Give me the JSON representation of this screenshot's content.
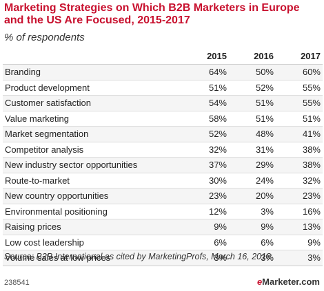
{
  "title": "Marketing Strategies on Which B2B Marketers in Europe and the US Are Focused, 2015-2017",
  "subtitle": "% of respondents",
  "chart_data": {
    "type": "table",
    "columns": [
      "",
      "2015",
      "2016",
      "2017"
    ],
    "rows": [
      {
        "label": "Branding",
        "values": [
          "64%",
          "50%",
          "60%"
        ]
      },
      {
        "label": "Product development",
        "values": [
          "51%",
          "52%",
          "55%"
        ]
      },
      {
        "label": "Customer satisfaction",
        "values": [
          "54%",
          "51%",
          "55%"
        ]
      },
      {
        "label": "Value marketing",
        "values": [
          "58%",
          "51%",
          "51%"
        ]
      },
      {
        "label": "Market segmentation",
        "values": [
          "52%",
          "48%",
          "41%"
        ]
      },
      {
        "label": "Competitor analysis",
        "values": [
          "32%",
          "31%",
          "38%"
        ]
      },
      {
        "label": "New industry sector opportunities",
        "values": [
          "37%",
          "29%",
          "38%"
        ]
      },
      {
        "label": "Route-to-market",
        "values": [
          "30%",
          "24%",
          "32%"
        ]
      },
      {
        "label": "New country opportunities",
        "values": [
          "23%",
          "20%",
          "23%"
        ]
      },
      {
        "label": "Environmental positioning",
        "values": [
          "12%",
          "3%",
          "16%"
        ]
      },
      {
        "label": "Raising prices",
        "values": [
          "9%",
          "9%",
          "13%"
        ]
      },
      {
        "label": "Low cost leadership",
        "values": [
          "6%",
          "6%",
          "9%"
        ]
      },
      {
        "label": "Volume sales at low prices",
        "values": [
          "3%",
          "3%",
          "3%"
        ]
      }
    ]
  },
  "source": "Source: B2B International as cited by MarketingProfs, March 16, 2018",
  "footer": {
    "chart_id": "238541",
    "logo_e": "e",
    "logo_rest": "Marketer.com"
  },
  "colors": {
    "title": "#c8102e",
    "logo_accent": "#c8102e"
  }
}
